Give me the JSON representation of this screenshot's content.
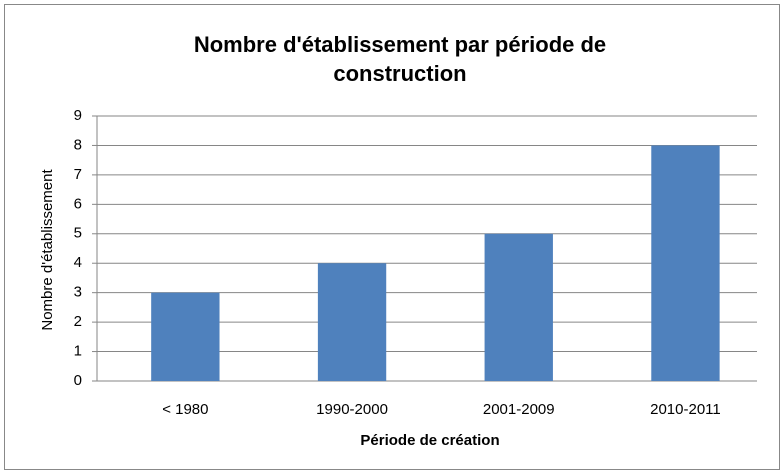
{
  "chart_data": {
    "type": "bar",
    "title": "Nombre d'établissement par période de construction",
    "x_label": "Période de création",
    "y_label": "Nombre d'établissement",
    "categories": [
      "< 1980",
      "1990-2000",
      "2001-2009",
      "2010-2011"
    ],
    "values": [
      3,
      4,
      5,
      8
    ],
    "color": "#4f81bd",
    "ylim": [
      0,
      9
    ],
    "yticks": [
      0,
      1,
      2,
      3,
      4,
      5,
      6,
      7,
      8,
      9
    ],
    "grid": true
  }
}
